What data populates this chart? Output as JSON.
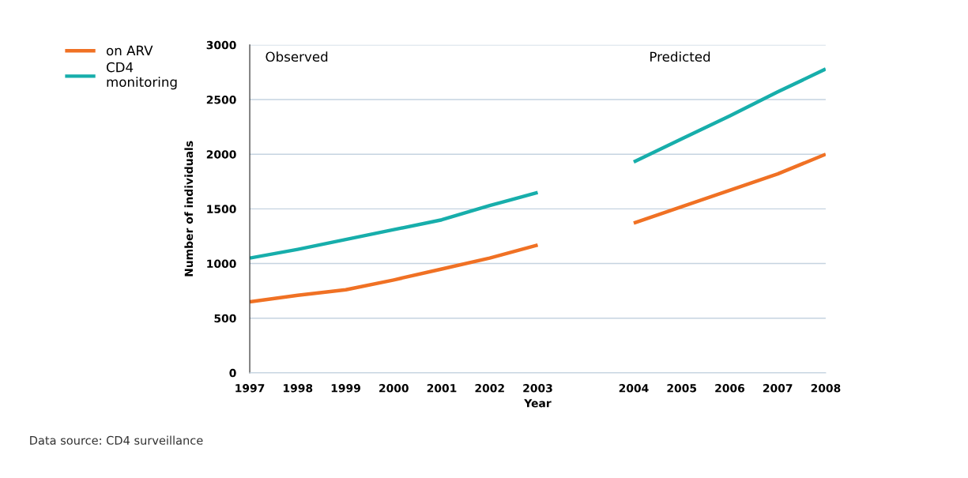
{
  "chart_data": {
    "type": "line",
    "xlabel": "Year",
    "ylabel": "Number of individuals",
    "categories": [
      "1997",
      "1998",
      "1999",
      "2000",
      "2001",
      "2002",
      "2003",
      null,
      "2004",
      "2005",
      "2006",
      "2007",
      "2008"
    ],
    "series": [
      {
        "name": "on ARV",
        "color": "#f07124",
        "values": [
          650,
          710,
          760,
          850,
          950,
          1050,
          1170,
          null,
          1370,
          1520,
          1670,
          1820,
          2000
        ]
      },
      {
        "name": "CD4\nmonitoring",
        "color": "#17aeab",
        "values": [
          1050,
          1130,
          1220,
          1310,
          1400,
          1530,
          1650,
          null,
          1930,
          2140,
          2350,
          2570,
          2780
        ]
      }
    ],
    "ylim": [
      0,
      3000
    ],
    "yticks": [
      0,
      500,
      1000,
      1500,
      2000,
      2500,
      3000
    ],
    "grid": "y",
    "legend": "top left",
    "marker": "none",
    "line_style": "solid",
    "annotations": [
      "Observed",
      "Predicted",
      "Data source: CD4 surveillance"
    ]
  }
}
